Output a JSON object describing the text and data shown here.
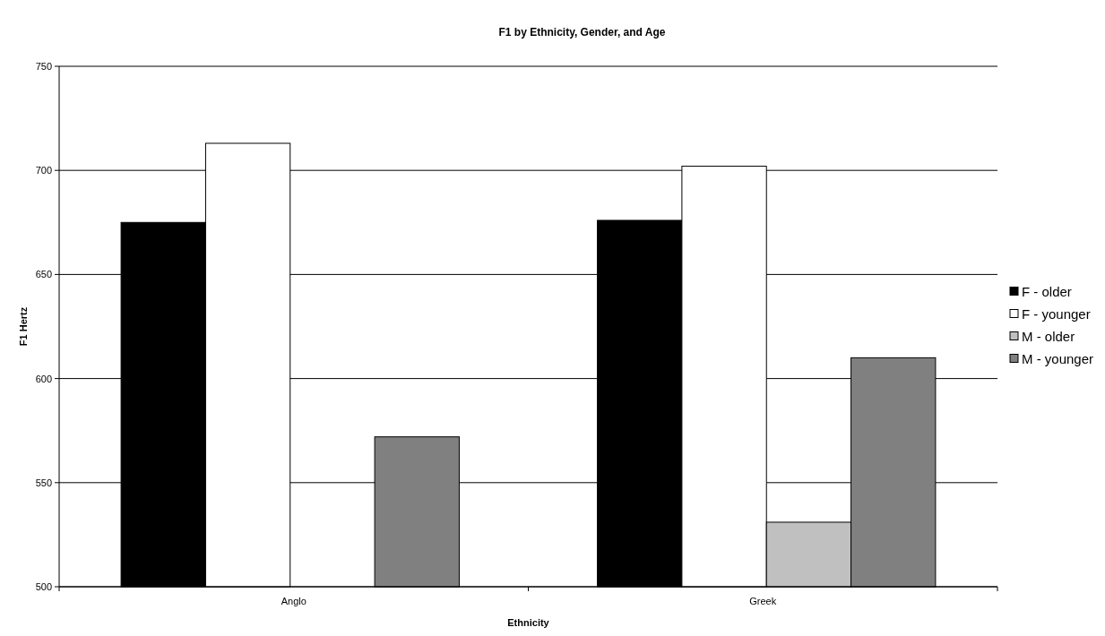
{
  "chart_data": {
    "type": "bar",
    "title": "F1 by Ethnicity, Gender, and Age",
    "xlabel": "Ethnicity",
    "ylabel": "F1 Hertz",
    "categories": [
      "Anglo",
      "Greek"
    ],
    "series": [
      {
        "name": "F - older",
        "color": "#000000",
        "values": [
          675,
          676
        ]
      },
      {
        "name": "F - younger",
        "color": "#ffffff",
        "values": [
          713,
          702
        ]
      },
      {
        "name": "M - older",
        "color": "#c0c0c0",
        "values": [
          null,
          531
        ]
      },
      {
        "name": "M - younger",
        "color": "#808080",
        "values": [
          572,
          610
        ]
      }
    ],
    "ylim": [
      500,
      750
    ],
    "yticks": [
      500,
      550,
      600,
      650,
      700,
      750
    ],
    "grid": "y",
    "legend": "right"
  }
}
